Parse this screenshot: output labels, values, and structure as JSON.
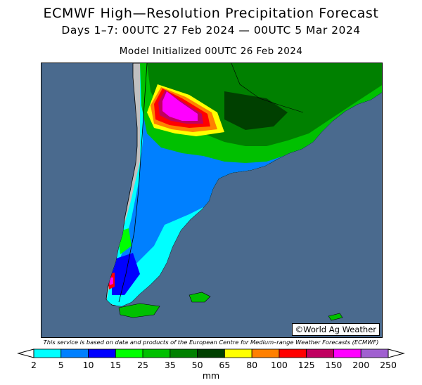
{
  "header": {
    "title": "ECMWF High—Resolution Precipitation Forecast",
    "period": "Days 1–7: 00UTC 27 Feb 2024 — 00UTC 5 Mar 2024",
    "init": "Model Initialized 00UTC 26 Feb 2024"
  },
  "map": {
    "credit": "©World Ag Weather",
    "ocean_color": "#4a6a8e",
    "dry_land_color": "#c0c0c0"
  },
  "disclaimer": "This service is based on data and products of the European Centre for Medium–range Weather Forecasts (ECMWF)",
  "legend": {
    "unit": "mm",
    "ticks": [
      "2",
      "5",
      "10",
      "15",
      "25",
      "35",
      "50",
      "65",
      "80",
      "100",
      "125",
      "150",
      "200",
      "250"
    ],
    "colors": [
      "#00ffff",
      "#0080ff",
      "#0000ff",
      "#00ff00",
      "#00c000",
      "#008000",
      "#004000",
      "#ffff00",
      "#ff8000",
      "#ff0000",
      "#c00060",
      "#ff00ff",
      "#a060d0"
    ]
  }
}
